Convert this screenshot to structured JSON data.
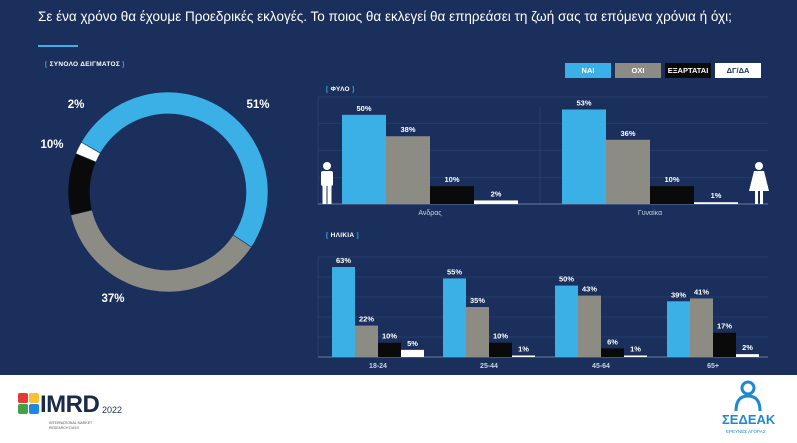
{
  "question": "Σε ένα χρόνο θα έχουμε Προεδρικές εκλογές. Το ποιος θα εκλεγεί θα επηρεάσει τη ζωή σας τα επόμενα χρόνια ή όχι;",
  "colors": {
    "background": "#1a2f5c",
    "accent": "#3ab0e6",
    "nai": "#3ab0e6",
    "oxi": "#8c8c85",
    "eksartatai": "#0a0a0a",
    "dgda": "#ffffff"
  },
  "legend": [
    {
      "label": "ΝΑΙ",
      "color": "#3ab0e6",
      "text_color": "#ffffff"
    },
    {
      "label": "ΟΧΙ",
      "color": "#8c8c85",
      "text_color": "#ffffff"
    },
    {
      "label": "ΕΞΑΡΤΑΤΑΙ",
      "color": "#0a0a0a",
      "text_color": "#ffffff"
    },
    {
      "label": "ΔΓ/ΔΑ",
      "color": "#ffffff",
      "text_color": "#1a2f5c"
    }
  ],
  "chart_data": [
    {
      "type": "pie",
      "title": "ΣΥΝΟΛΟ ΔΕΙΓΜΑΤΟΣ",
      "categories": [
        "ΝΑΙ",
        "ΟΧΙ",
        "ΕΞΑΡΤΑΤΑΙ",
        "ΔΓ/ΔΑ"
      ],
      "values": [
        51,
        37,
        10,
        2
      ],
      "labels": [
        "51%",
        "37%",
        "10%",
        "2%"
      ]
    },
    {
      "type": "bar",
      "title": "ΦΥΛΟ",
      "categories": [
        "Ανδρας",
        "Γυναίκα"
      ],
      "series": [
        {
          "name": "ΝΑΙ",
          "values": [
            50,
            53
          ]
        },
        {
          "name": "ΟΧΙ",
          "values": [
            38,
            36
          ]
        },
        {
          "name": "ΕΞΑΡΤΑΤΑΙ",
          "values": [
            10,
            10
          ]
        },
        {
          "name": "ΔΓ/ΔΑ",
          "values": [
            2,
            1
          ]
        }
      ],
      "ylim": [
        0,
        60
      ],
      "grid": true,
      "icons": [
        "male-figure-icon",
        "female-figure-icon"
      ]
    },
    {
      "type": "bar",
      "title": "ΗΛΙΚΙΑ",
      "categories": [
        "18-24",
        "25-44",
        "45-64",
        "65+"
      ],
      "series": [
        {
          "name": "ΝΑΙ",
          "values": [
            63,
            55,
            50,
            39
          ]
        },
        {
          "name": "ΟΧΙ",
          "values": [
            22,
            35,
            43,
            41
          ]
        },
        {
          "name": "ΕΞΑΡΤΑΤΑΙ",
          "values": [
            10,
            10,
            6,
            17
          ]
        },
        {
          "name": "ΔΓ/ΔΑ",
          "values": [
            5,
            1,
            1,
            2
          ]
        }
      ],
      "ylim": [
        0,
        70
      ],
      "grid": true
    }
  ],
  "footer": {
    "imrd_logo_text": "IMRD",
    "imrd_year": "2022",
    "imrd_subtitle": "INTERNATIONAL MARKET RESEARCH DAYS",
    "sedeak_logo_text": "ΣΕΔΕΑΚ",
    "sedeak_subtitle": "ΕΡΕΥΝΕΣ ΑΓΟΡΑΣ"
  }
}
